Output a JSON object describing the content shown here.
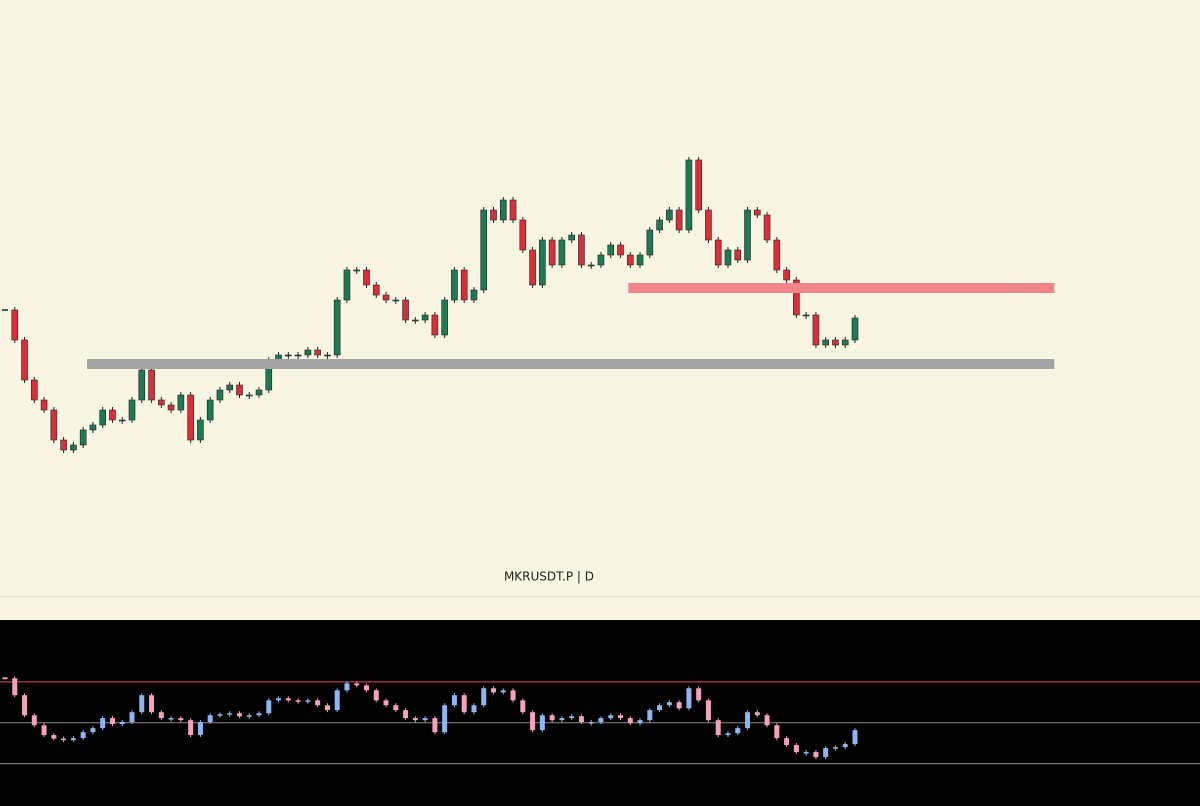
{
  "chart_data": [
    {
      "type": "candlestick",
      "title": "MKRUSDT.P | D",
      "close": [
        58,
        52,
        44,
        40,
        38,
        32,
        30,
        31,
        34,
        35,
        38,
        36,
        36,
        40,
        46,
        40,
        39,
        38,
        41,
        32,
        36,
        40,
        42,
        43,
        41,
        41,
        42,
        48,
        49,
        49,
        49,
        50,
        49,
        49,
        60,
        66,
        66,
        63,
        61,
        60,
        60,
        56,
        56,
        57,
        53,
        60,
        66,
        60,
        62,
        78,
        76,
        80,
        76,
        70,
        63,
        72,
        67,
        72,
        73,
        67,
        67,
        69,
        71,
        69,
        67,
        69,
        74,
        76,
        78,
        74,
        88,
        78,
        72,
        67,
        70,
        68,
        78,
        77,
        72,
        66,
        64,
        57,
        57,
        51,
        52,
        51,
        52,
        56.4
      ],
      "ylim": [
        0,
        120
      ],
      "up_color": "#1e7a55",
      "down_color": "#d8303a",
      "zones": [
        {
          "value": 47.2,
          "start": 8.4,
          "end": 107.4,
          "color": "#a3a3a3"
        },
        {
          "value": 62.4,
          "start": 63.8,
          "end": 107.4,
          "color": "#f08488"
        }
      ]
    },
    {
      "type": "indicator-candles",
      "values": [
        71.5,
        63.2,
        53.4,
        48.5,
        43.7,
        42,
        41.2,
        42.2,
        45.1,
        47.1,
        52,
        49.1,
        50.1,
        54.9,
        63.2,
        54.9,
        52,
        52,
        51,
        43.7,
        50.1,
        53.4,
        53.9,
        54.4,
        52.9,
        53.4,
        54.4,
        60.7,
        61.7,
        60.7,
        60.2,
        60.7,
        58.3,
        55.9,
        65.6,
        69,
        68,
        65.6,
        60.7,
        58.3,
        55.9,
        52,
        51,
        52,
        45.1,
        58.3,
        63.2,
        54.9,
        58.3,
        66.6,
        64.6,
        65.6,
        60.7,
        54.9,
        46.1,
        53.4,
        51,
        52,
        52.9,
        50.1,
        50.1,
        52,
        53.4,
        52,
        49.5,
        51,
        55.9,
        58.3,
        59.8,
        56.8,
        66.6,
        60.7,
        51,
        43.7,
        44.6,
        47.1,
        54.9,
        53.4,
        48.5,
        42.2,
        38.8,
        35.4,
        35.4,
        32.9,
        37.3,
        37.8,
        39.3,
        46.1
      ],
      "ylim": [
        9,
        100
      ],
      "up_color": "#8db6f2",
      "down_color": "#f2a2bd",
      "levels": [
        {
          "value": 70,
          "color": "#d9534f"
        },
        {
          "value": 50,
          "color": "#8a8a8a"
        },
        {
          "value": 30,
          "color": "#8a8a8a"
        }
      ]
    }
  ]
}
